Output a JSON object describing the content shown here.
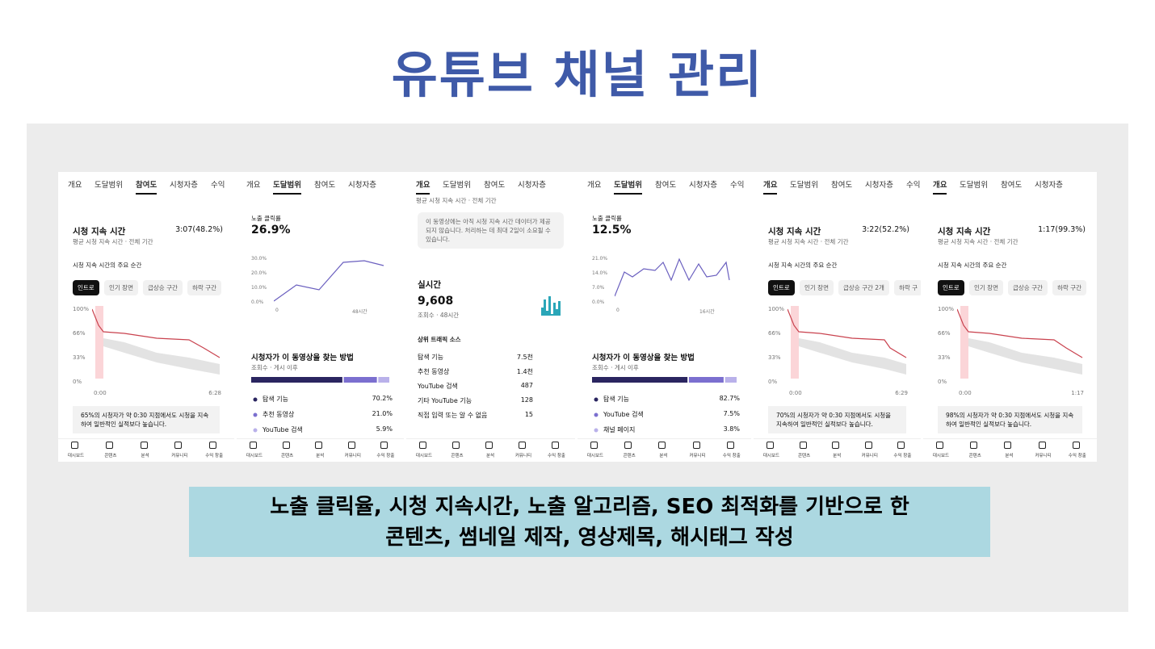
{
  "title": "유튜브 채널 관리",
  "nav": [
    "대시보드",
    "콘텐츠",
    "분석",
    "커뮤니티",
    "수익 창출"
  ],
  "panels": [
    {
      "tabs": [
        "개요",
        "도달범위",
        "참여도",
        "시청자층",
        "수익"
      ],
      "active": 2,
      "heading": "시청 지속 시간",
      "value": "3:07(48.2%)",
      "sub": "평균 시청 지속 시간 · 전체 기간",
      "section": "시청 지속 시간의 주요 순간",
      "chips": [
        "인트로",
        "인기 장면",
        "급상승 구간",
        "하락 구간"
      ],
      "yaxis": [
        "100%",
        "66%",
        "33%",
        "0%"
      ],
      "xaxis": [
        "0:00",
        "6:28"
      ],
      "note": "65%의 시청자가 약 0:30 지점에서도 시청을 지속하여 일반적인 실적보다 높습니다."
    },
    {
      "tabs": [
        "개요",
        "도달범위",
        "참여도",
        "시청자층"
      ],
      "active": 1,
      "heading": "노출 클릭률",
      "value": "26.9%",
      "yaxis": [
        "30.0%",
        "20.0%",
        "10.0%",
        "0.0%"
      ],
      "xaxis": [
        "0",
        "48시간"
      ],
      "section": "시청자가 이 동영상을 찾는 방법",
      "sub": "조회수 · 게시 이후",
      "rows": [
        [
          "탐색 기능",
          "70.2%"
        ],
        [
          "추천 동영상",
          "21.0%"
        ],
        [
          "YouTube 검색",
          "5.9%"
        ]
      ]
    },
    {
      "tabs": [
        "개요",
        "도달범위",
        "참여도",
        "시청자층"
      ],
      "active": 0,
      "top": "평균 시청 지속 시간 · 전체 기간",
      "notice": "이 동영상에는 아직 시청 지속 시간 데이터가 제공되지 않습니다. 처리하는 데 최대 2일이 소요될 수 있습니다.",
      "heading": "실시간",
      "value": "9,608",
      "sub": "조회수 · 48시간",
      "section": "상위 트래픽 소스",
      "rows": [
        [
          "탐색 기능",
          "7.5천"
        ],
        [
          "추천 동영상",
          "1.4천"
        ],
        [
          "YouTube 검색",
          "487"
        ],
        [
          "기타 YouTube 기능",
          "128"
        ],
        [
          "직접 입력 또는 알 수 없음",
          "15"
        ]
      ]
    },
    {
      "tabs": [
        "개요",
        "도달범위",
        "참여도",
        "시청자층",
        "수익"
      ],
      "active": 1,
      "heading": "노출 클릭률",
      "value": "12.5%",
      "yaxis": [
        "21.0%",
        "14.0%",
        "7.0%",
        "0.0%"
      ],
      "xaxis": [
        "0",
        "16시간"
      ],
      "section": "시청자가 이 동영상을 찾는 방법",
      "sub": "조회수 · 게시 이후",
      "rows": [
        [
          "탐색 기능",
          "82.7%"
        ],
        [
          "YouTube 검색",
          "7.5%"
        ],
        [
          "채널 페이지",
          "3.8%"
        ]
      ]
    },
    {
      "tabs": [
        "개요",
        "도달범위",
        "참여도",
        "시청자층",
        "수익"
      ],
      "active": 0,
      "heading": "시청 지속 시간",
      "value": "3:22(52.2%)",
      "sub": "평균 시청 지속 시간 · 전체 기간",
      "section": "시청 지속 시간의 주요 순간",
      "chips": [
        "인트로",
        "인기 장면",
        "급상승 구간 2개",
        "하락 구"
      ],
      "yaxis": [
        "100%",
        "66%",
        "33%",
        "0%"
      ],
      "xaxis": [
        "0:00",
        "6:29"
      ],
      "note": "70%의 시청자가 약 0:30 지점에서도 시청을 지속하여 일반적인 실적보다 높습니다."
    },
    {
      "tabs": [
        "개요",
        "도달범위",
        "참여도",
        "시청자층"
      ],
      "active": 0,
      "heading": "시청 지속 시간",
      "value": "1:17(99.3%)",
      "sub": "평균 시청 지속 시간 · 전체 기간",
      "section": "시청 지속 시간의 주요 순간",
      "chips": [
        "인트로",
        "인기 장면",
        "급상승 구간",
        "하락 구간"
      ],
      "yaxis": [
        "100%",
        "66%",
        "33%",
        "0%"
      ],
      "xaxis": [
        "0:00",
        "1:17"
      ],
      "note": "98%의 시청자가 약 0:30 지점에서도 시청을 지속하여 일반적인 실적보다 높습니다."
    }
  ],
  "caption": [
    "노출 클릭율, 시청 지속시간, 노출 알고리즘, SEO 최적화를 기반으로 한",
    "콘텐츠, 썸네일 제작, 영상제목, 해시태그 작성"
  ]
}
